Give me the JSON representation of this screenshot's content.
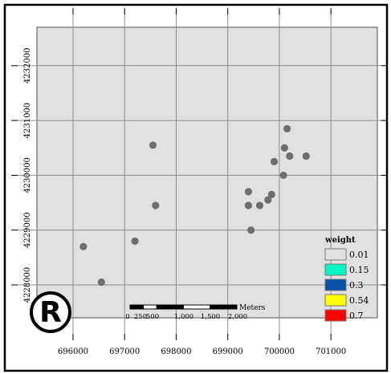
{
  "chart_data": {
    "type": "scatter",
    "x_ticks": [
      696000,
      697000,
      698000,
      699000,
      700000,
      701000
    ],
    "y_ticks": [
      4228000,
      4229000,
      4230000,
      4231000,
      4232000
    ],
    "x_tick_labels": [
      "696000",
      "697000",
      "698000",
      "699000",
      "700000",
      "701000"
    ],
    "y_tick_labels": [
      "4228000",
      "4229000",
      "4230000",
      "4231000",
      "4232000"
    ],
    "xlim": [
      695300,
      701900
    ],
    "ylim": [
      4227400,
      4232700
    ],
    "grid": true,
    "points": [
      {
        "x": 696200,
        "y": 4228700
      },
      {
        "x": 696550,
        "y": 4228050
      },
      {
        "x": 697200,
        "y": 4228800
      },
      {
        "x": 697550,
        "y": 4230550
      },
      {
        "x": 697600,
        "y": 4229450
      },
      {
        "x": 699400,
        "y": 4229700
      },
      {
        "x": 699400,
        "y": 4229450
      },
      {
        "x": 699450,
        "y": 4229000
      },
      {
        "x": 699620,
        "y": 4229450
      },
      {
        "x": 699780,
        "y": 4229550
      },
      {
        "x": 699850,
        "y": 4229650
      },
      {
        "x": 699900,
        "y": 4230250
      },
      {
        "x": 700080,
        "y": 4230000
      },
      {
        "x": 700100,
        "y": 4230500
      },
      {
        "x": 700150,
        "y": 4230850
      },
      {
        "x": 700200,
        "y": 4230350
      },
      {
        "x": 700520,
        "y": 4230350
      }
    ],
    "point_color": "#6e6e6e",
    "legend": {
      "position": "bottom-right",
      "title": "weight",
      "entries": [
        {
          "label": "0.01",
          "color": "#e1e1e1"
        },
        {
          "label": "0.15",
          "color": "#00f5c0"
        },
        {
          "label": "0.3",
          "color": "#0a4fa8"
        },
        {
          "label": "0.54",
          "color": "#ffff00"
        },
        {
          "label": "0.7",
          "color": "#ff0000"
        }
      ]
    },
    "scale_bar": {
      "unit_label": "Meters",
      "labels": [
        "0",
        "250",
        "500",
        "1,000",
        "1,500",
        "2,000"
      ],
      "values": [
        0,
        250,
        500,
        1000,
        1500,
        2000
      ]
    },
    "logo_text": "R"
  },
  "colors": {
    "frame_bg": "#ffffff",
    "plot_bg": "#e1e1e1",
    "grid": "#8c8c8c",
    "border": "#000000"
  }
}
